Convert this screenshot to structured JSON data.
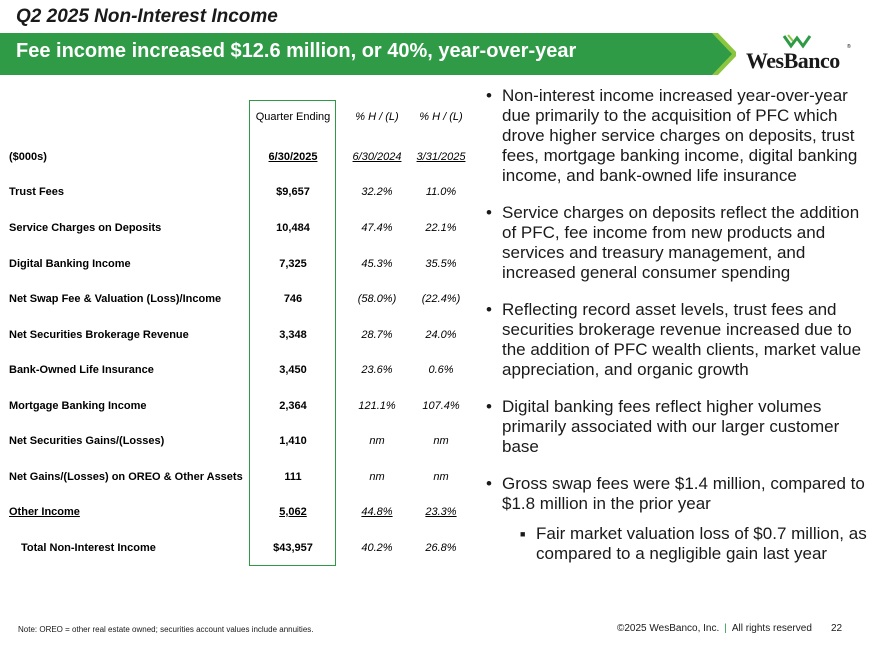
{
  "slide": {
    "title": "Q2 2025 Non-Interest Income",
    "headline": "Fee income increased $12.6 million, or 40%, year-over-year"
  },
  "logo": {
    "text": "WesBanco",
    "tm": "®"
  },
  "table": {
    "header_quarter": "Quarter Ending",
    "header_p1": "% H / (L)",
    "header_p2": "% H / (L)",
    "units": "($000s)",
    "col_date": "6/30/2025",
    "col_p1": "6/30/2024",
    "col_p2": "3/31/2025",
    "rows": [
      {
        "label": "Trust Fees",
        "value": "$9,657",
        "p1": "32.2%",
        "p2": "11.0%"
      },
      {
        "label": "Service Charges on Deposits",
        "value": "10,484",
        "p1": "47.4%",
        "p2": "22.1%"
      },
      {
        "label": "Digital Banking Income",
        "value": "7,325",
        "p1": "45.3%",
        "p2": "35.5%"
      },
      {
        "label": "Net Swap Fee & Valuation (Loss)/Income",
        "value": "746",
        "p1": "(58.0%)",
        "p2": "(22.4%)"
      },
      {
        "label": "Net Securities Brokerage Revenue",
        "value": "3,348",
        "p1": "28.7%",
        "p2": "24.0%"
      },
      {
        "label": "Bank-Owned Life Insurance",
        "value": "3,450",
        "p1": "23.6%",
        "p2": "0.6%"
      },
      {
        "label": "Mortgage Banking Income",
        "value": "2,364",
        "p1": "121.1%",
        "p2": "107.4%"
      },
      {
        "label": "Net Securities Gains/(Losses)",
        "value": "1,410",
        "p1": "nm",
        "p2": "nm"
      },
      {
        "label": "Net Gains/(Losses) on OREO & Other Assets",
        "value": "111",
        "p1": "nm",
        "p2": "nm"
      },
      {
        "label": "Other Income",
        "value": "5,062",
        "p1": "44.8%",
        "p2": "23.3%"
      }
    ],
    "total": {
      "label": "Total Non-Interest Income",
      "value": "$43,957",
      "p1": "40.2%",
      "p2": "26.8%"
    }
  },
  "bullets": [
    "Non-interest income increased year-over-year due primarily to the acquisition of PFC which drove higher service charges on deposits, trust fees, mortgage banking income, digital banking income, and bank-owned life insurance",
    "Service charges on deposits reflect the addition of PFC, fee income from new products and services and treasury management, and increased general consumer spending",
    "Reflecting record asset levels, trust fees and securities brokerage revenue increased due to the addition of PFC wealth clients, market value appreciation, and organic growth",
    "Digital banking fees reflect higher volumes primarily associated with our larger customer base",
    "Gross swap fees were $1.4 million, compared to $1.8 million in the prior year"
  ],
  "sub_bullet": "Fair market valuation loss of $0.7 million, as compared to a negligible gain last year",
  "footer": {
    "note": "Note: OREO = other real estate owned; securities account values include annuities.",
    "copyright": "©2025 WesBanco, Inc.",
    "separator": "|",
    "rights": "All rights reserved",
    "page": "22"
  },
  "colors": {
    "brand_green": "#2e9a45",
    "banner_green": "#2f9b47"
  }
}
